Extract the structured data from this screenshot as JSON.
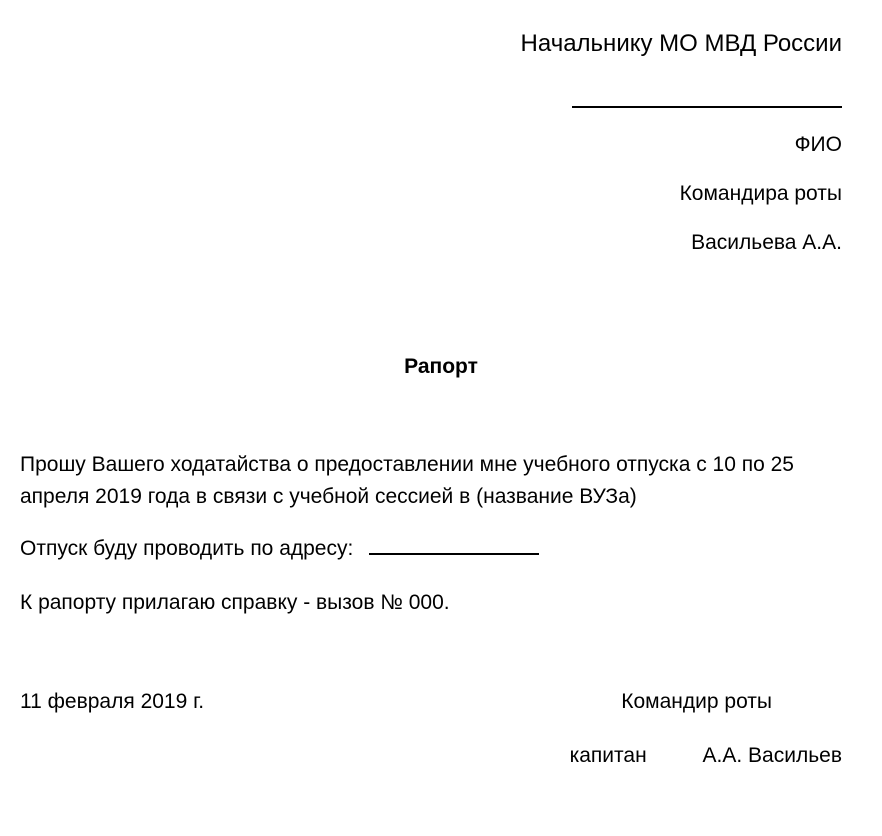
{
  "header": {
    "recipient": "Начальнику МО МВД России",
    "fio_label": "ФИО",
    "position": "Командира роты",
    "name": "Васильева А.А."
  },
  "title": "Рапорт",
  "body": {
    "request": "Прошу Вашего ходатайства о предоставлении мне учебного отпуска  с 10  по 25 апреля  2019 года  в связи с учебной сессией в (название ВУЗа)",
    "address_label": "Отпуск буду проводить по адресу:",
    "attachment": "К  рапорту прилагаю справку - вызов № 000."
  },
  "footer": {
    "date": "11 февраля 2019 г.",
    "position": "Командир роты",
    "rank": "капитан",
    "name": "А.А. Васильев"
  },
  "style": {
    "background_color": "#ffffff",
    "text_color": "#000000",
    "font_family": "Arial, sans-serif",
    "header_fontsize": 24,
    "body_fontsize": 21,
    "title_fontsize": 21,
    "title_fontweight": "bold"
  }
}
